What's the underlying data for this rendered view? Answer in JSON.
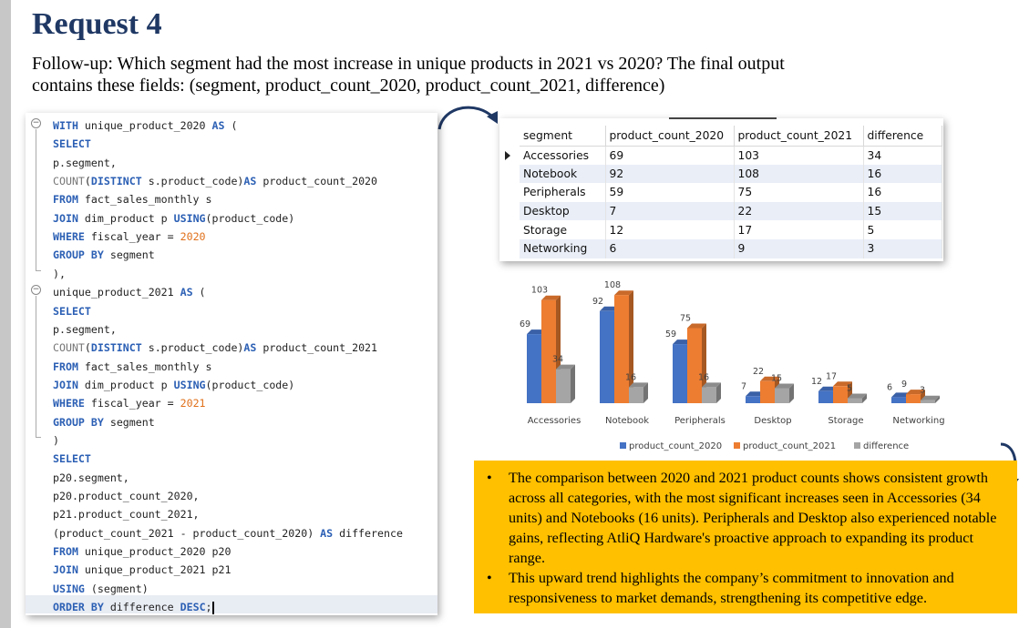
{
  "header": {
    "title": "Request 4",
    "subtitle": "Follow-up: Which segment had the most increase in unique products in 2021 vs 2020? The final output contains these fields: (segment, product_count_2020, product_count_2021, difference)"
  },
  "sql": {
    "lines": [
      "WITH unique_product_2020 AS (",
      "SELECT",
      "p.segment,",
      "COUNT(DISTINCT s.product_code)AS product_count_2020",
      "FROM fact_sales_monthly s",
      "JOIN dim_product p USING(product_code)",
      "WHERE fiscal_year = 2020",
      "GROUP BY segment",
      "),",
      "unique_product_2021 AS (",
      "SELECT",
      "p.segment,",
      "COUNT(DISTINCT s.product_code)AS product_count_2021",
      "FROM fact_sales_monthly s",
      "JOIN dim_product p USING(product_code)",
      "WHERE fiscal_year = 2021",
      "GROUP BY segment",
      ")",
      "SELECT",
      "p20.segment,",
      "p20.product_count_2020,",
      "p21.product_count_2021,",
      "(product_count_2021 - product_count_2020) AS difference",
      "FROM unique_product_2020 p20",
      "JOIN unique_product_2021 p21",
      "USING (segment)",
      "ORDER BY difference DESC;"
    ]
  },
  "result_grid": {
    "columns": [
      "segment",
      "product_count_2020",
      "product_count_2021",
      "difference"
    ],
    "rows": [
      [
        "Accessories",
        "69",
        "103",
        "34"
      ],
      [
        "Notebook",
        "92",
        "108",
        "16"
      ],
      [
        "Peripherals",
        "59",
        "75",
        "16"
      ],
      [
        "Desktop",
        "7",
        "22",
        "15"
      ],
      [
        "Storage",
        "12",
        "17",
        "5"
      ],
      [
        "Networking",
        "6",
        "9",
        "3"
      ]
    ]
  },
  "chart_data": {
    "type": "bar",
    "categories": [
      "Accessories",
      "Notebook",
      "Peripherals",
      "Desktop",
      "Storage",
      "Networking"
    ],
    "series": [
      {
        "name": "product_count_2020",
        "values": [
          69,
          92,
          59,
          7,
          12,
          6
        ],
        "color": "#4472c4"
      },
      {
        "name": "product_count_2021",
        "values": [
          103,
          108,
          75,
          22,
          17,
          9
        ],
        "color": "#ed7d31"
      },
      {
        "name": "difference",
        "values": [
          34,
          16,
          16,
          15,
          5,
          3
        ],
        "color": "#a5a5a5"
      }
    ],
    "title": "",
    "xlabel": "",
    "ylabel": "",
    "ylim": [
      0,
      120
    ],
    "legend": "bottom",
    "grid": false
  },
  "insights": {
    "bullets": [
      "The comparison between 2020 and 2021 product counts shows consistent growth across all categories, with the most significant increases seen in Accessories (34 units) and Notebooks (16 units). Peripherals and Desktop also experienced notable gains, reflecting AtliQ Hardware's proactive approach to expanding its product range.",
      "This upward trend highlights the company’s commitment to innovation and responsiveness to market demands, strengthening its competitive edge."
    ],
    "bullet_glyph": "•"
  }
}
